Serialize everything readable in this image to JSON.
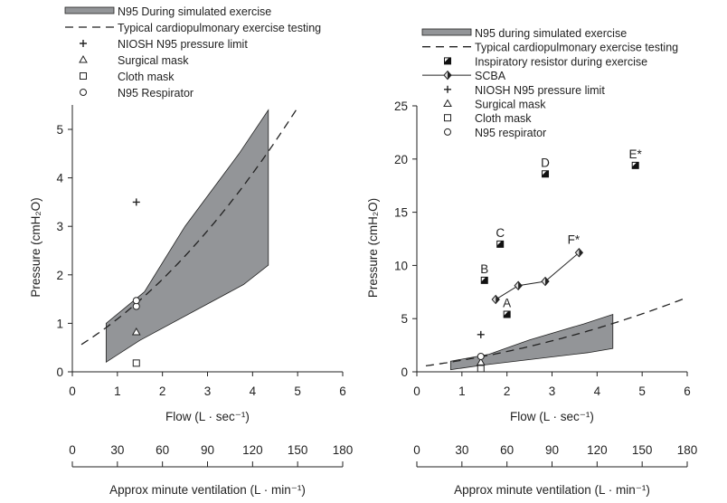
{
  "chart_data": [
    {
      "type": "line",
      "xlabel": "Flow (L · sec⁻¹)",
      "ylabel": "Pressure (cmH₂O)",
      "x2label": "Approx minute ventilation (L · min⁻¹)",
      "xlim": [
        0,
        6
      ],
      "ylim": [
        0,
        5.4
      ],
      "xticks": [
        "0",
        "1",
        "2",
        "3",
        "4",
        "5",
        "6"
      ],
      "yticks": [
        "0",
        "1",
        "2",
        "3",
        "4",
        "5"
      ],
      "x2ticks": [
        "0",
        "30",
        "60",
        "90",
        "120",
        "150",
        "180"
      ],
      "legend": [
        {
          "type": "band",
          "label": "N95 During simulated exercise"
        },
        {
          "type": "dash",
          "label": "Typical cardiopulmonary exercise testing"
        },
        {
          "type": "plus",
          "label": "NIOSH N95 pressure limit"
        },
        {
          "type": "triangle",
          "label": "Surgical mask"
        },
        {
          "type": "square",
          "label": "Cloth mask"
        },
        {
          "type": "circle",
          "label": "N95 Respirator"
        }
      ],
      "band": {
        "upper": [
          [
            0.75,
            1.0
          ],
          [
            1.6,
            1.65
          ],
          [
            2.5,
            3.0
          ],
          [
            3.7,
            4.5
          ],
          [
            4.35,
            5.4
          ]
        ],
        "lower": [
          [
            0.75,
            0.2
          ],
          [
            1.5,
            0.65
          ],
          [
            3.8,
            1.8
          ],
          [
            4.35,
            2.2
          ]
        ]
      },
      "dash_curve": {
        "coef": [
          0.45,
          0.55,
          0.09
        ],
        "x_range": [
          0.2,
          5.0
        ]
      },
      "points": [
        {
          "type": "plus",
          "x": 1.42,
          "y": 3.5
        },
        {
          "type": "triangle",
          "x": 1.42,
          "y": 0.82
        },
        {
          "type": "square",
          "x": 1.42,
          "y": 0.18
        },
        {
          "type": "circle",
          "x": 1.42,
          "y": 1.35
        },
        {
          "type": "circle",
          "x": 1.42,
          "y": 1.47
        }
      ],
      "scba": [],
      "resistor": []
    },
    {
      "type": "line",
      "xlabel": "Flow (L · sec⁻¹)",
      "ylabel": "Pressure (cmH₂O)",
      "x2label": "Approx minute ventilation (L · min⁻¹)",
      "xlim": [
        0,
        6
      ],
      "ylim": [
        0,
        25
      ],
      "xticks": [
        "0",
        "1",
        "2",
        "3",
        "4",
        "5",
        "6"
      ],
      "yticks": [
        "0",
        "5",
        "10",
        "15",
        "20",
        "25"
      ],
      "x2ticks": [
        "0",
        "30",
        "60",
        "90",
        "120",
        "150",
        "180"
      ],
      "legend": [
        {
          "type": "band",
          "label": "N95 during simulated exercise"
        },
        {
          "type": "dash",
          "label": "Typical cardiopulmonary exercise testing"
        },
        {
          "type": "resistor",
          "label": "Inspiratory resistor during exercise"
        },
        {
          "type": "scba",
          "label": "SCBA"
        },
        {
          "type": "plus",
          "label": "NIOSH N95 pressure limit"
        },
        {
          "type": "triangle",
          "label": "Surgical mask"
        },
        {
          "type": "square",
          "label": "Cloth mask"
        },
        {
          "type": "circle",
          "label": "N95 respirator"
        }
      ],
      "band": {
        "upper": [
          [
            0.75,
            1.0
          ],
          [
            1.6,
            1.65
          ],
          [
            2.5,
            3.0
          ],
          [
            3.7,
            4.5
          ],
          [
            4.35,
            5.4
          ]
        ],
        "lower": [
          [
            0.75,
            0.2
          ],
          [
            1.5,
            0.65
          ],
          [
            3.8,
            1.8
          ],
          [
            4.35,
            2.2
          ]
        ]
      },
      "dash_curve": {
        "coef": [
          0.45,
          0.55,
          0.09
        ],
        "x_range": [
          0.2,
          6.0
        ]
      },
      "points": [
        {
          "type": "plus",
          "x": 1.42,
          "y": 3.5
        },
        {
          "type": "triangle",
          "x": 1.42,
          "y": 0.9
        },
        {
          "type": "square",
          "x": 1.42,
          "y": 0.3
        },
        {
          "type": "circle",
          "x": 1.42,
          "y": 1.45
        }
      ],
      "resistor": [
        {
          "label": "A",
          "x": 2.0,
          "y": 5.4
        },
        {
          "label": "B",
          "x": 1.5,
          "y": 8.6
        },
        {
          "label": "C",
          "x": 1.85,
          "y": 12.0
        },
        {
          "label": "D",
          "x": 2.85,
          "y": 18.6
        },
        {
          "label": "E*",
          "x": 4.85,
          "y": 19.4
        }
      ],
      "scba": [
        {
          "x": 1.75,
          "y": 6.8,
          "label": ""
        },
        {
          "x": 2.25,
          "y": 8.1,
          "label": ""
        },
        {
          "x": 2.85,
          "y": 8.5,
          "label": ""
        },
        {
          "x": 3.6,
          "y": 11.2,
          "label": "F*"
        }
      ]
    }
  ]
}
